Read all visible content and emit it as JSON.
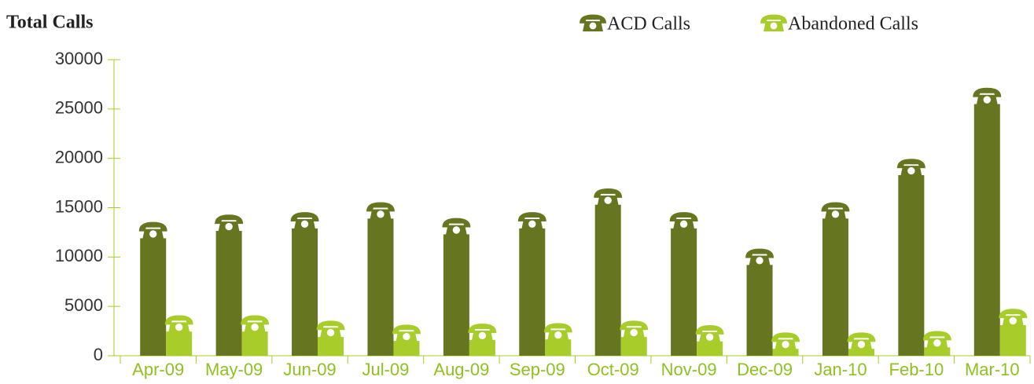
{
  "chart_data": {
    "type": "bar",
    "title": "Total Calls",
    "categories": [
      "Apr-09",
      "May-09",
      "Jun-09",
      "Jul-09",
      "Aug-09",
      "Sep-09",
      "Oct-09",
      "Nov-09",
      "Dec-09",
      "Jan-10",
      "Feb-10",
      "Mar-10"
    ],
    "series": [
      {
        "name": "ACD Calls",
        "color": "#667520",
        "values": [
          11900,
          12650,
          12900,
          13900,
          12300,
          12900,
          15300,
          12900,
          9200,
          13900,
          18300,
          25500
        ]
      },
      {
        "name": "Abandoned Calls",
        "color": "#a8cc2a",
        "values": [
          2450,
          2450,
          1900,
          1500,
          1600,
          1650,
          1900,
          1450,
          700,
          700,
          850,
          3100
        ]
      }
    ],
    "ylim": [
      0,
      30000
    ],
    "yticks": [
      0,
      5000,
      10000,
      15000,
      20000,
      25000,
      30000
    ]
  }
}
